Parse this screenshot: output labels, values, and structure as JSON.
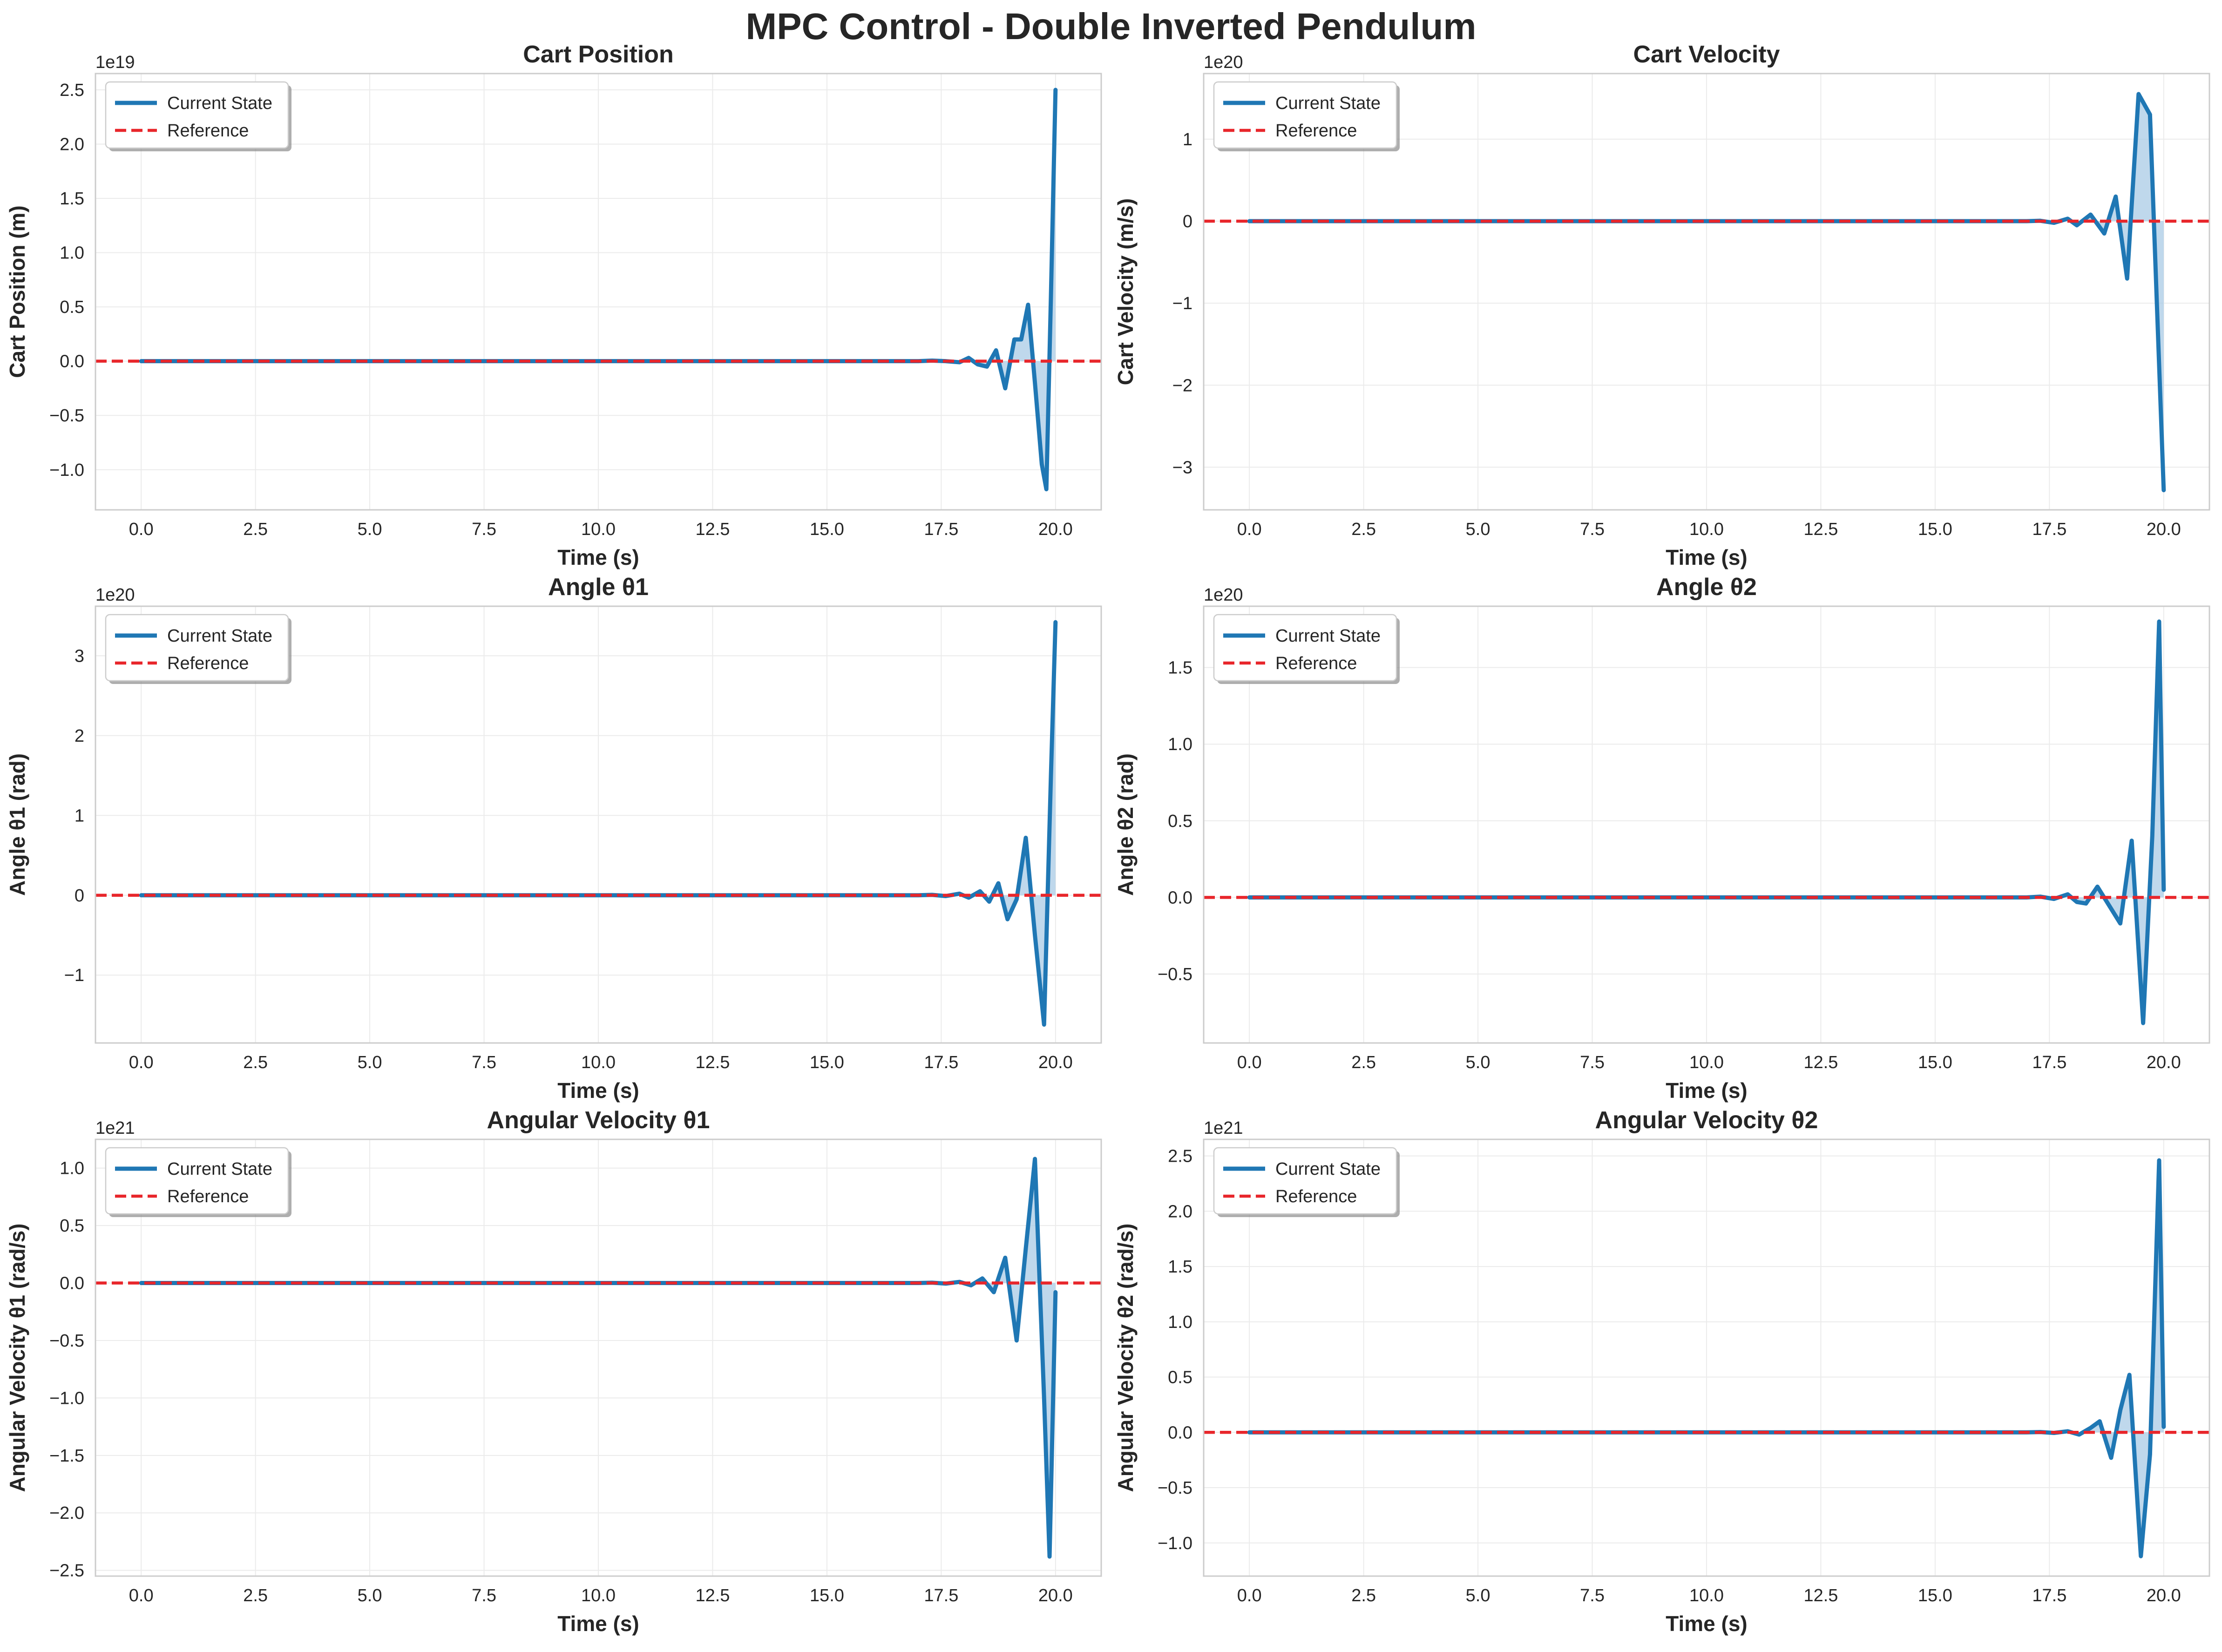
{
  "suptitle": "MPC Control - Double Inverted Pendulum",
  "colors": {
    "state_line": "#1f77b4",
    "fill": "#aacbe6",
    "reference_line": "#e8262b",
    "grid": "#ebebeb",
    "frame": "#cccccc",
    "text": "#262626"
  },
  "chart_data": [
    {
      "type": "line",
      "title": "Cart Position",
      "xlabel": "Time (s)",
      "ylabel": "Cart Position (m)",
      "y_offset_label": "1e19",
      "xlim": [
        -1.0,
        21.0
      ],
      "ylim": [
        -1.37,
        2.65
      ],
      "xticks": [
        0,
        2.5,
        5,
        7.5,
        10,
        12.5,
        15,
        17.5,
        20
      ],
      "xtick_labels": [
        "0.0",
        "2.5",
        "5.0",
        "7.5",
        "10.0",
        "12.5",
        "15.0",
        "17.5",
        "20.0"
      ],
      "yticks": [
        -1.0,
        -0.5,
        0.0,
        0.5,
        1.0,
        1.5,
        2.0,
        2.5
      ],
      "ytick_labels": [
        "−1.0",
        "−0.5",
        "0.0",
        "0.5",
        "1.0",
        "1.5",
        "2.0",
        "2.5"
      ],
      "grid": true,
      "legend_position": "top-left",
      "legend": [
        "Current State",
        "Reference"
      ],
      "series": [
        {
          "name": "Current State",
          "style": "solid",
          "x": [
            0,
            17.0,
            17.3,
            17.6,
            17.9,
            18.1,
            18.3,
            18.5,
            18.7,
            18.9,
            19.1,
            19.25,
            19.4,
            19.55,
            19.7,
            19.8,
            19.9,
            20.0
          ],
          "y": [
            0,
            0,
            0.005,
            0,
            -0.01,
            0.03,
            -0.03,
            -0.05,
            0.1,
            -0.25,
            0.2,
            0.2,
            0.52,
            -0.2,
            -0.95,
            -1.18,
            0.6,
            2.5
          ]
        },
        {
          "name": "Reference",
          "style": "dashed",
          "x": [
            -1.0,
            21.0
          ],
          "y": [
            0,
            0
          ]
        }
      ]
    },
    {
      "type": "line",
      "title": "Cart Velocity",
      "xlabel": "Time (s)",
      "ylabel": "Cart Velocity (m/s)",
      "y_offset_label": "1e20",
      "xlim": [
        -1.0,
        21.0
      ],
      "ylim": [
        -3.52,
        1.8
      ],
      "xticks": [
        0,
        2.5,
        5,
        7.5,
        10,
        12.5,
        15,
        17.5,
        20
      ],
      "xtick_labels": [
        "0.0",
        "2.5",
        "5.0",
        "7.5",
        "10.0",
        "12.5",
        "15.0",
        "17.5",
        "20.0"
      ],
      "yticks": [
        -3,
        -2,
        -1,
        0,
        1
      ],
      "ytick_labels": [
        "−3",
        "−2",
        "−1",
        "0",
        "1"
      ],
      "grid": true,
      "legend_position": "top-left",
      "legend": [
        "Current State",
        "Reference"
      ],
      "series": [
        {
          "name": "Current State",
          "style": "solid",
          "x": [
            0,
            17.0,
            17.3,
            17.6,
            17.9,
            18.1,
            18.4,
            18.7,
            18.95,
            19.2,
            19.45,
            19.7,
            19.85,
            20.0
          ],
          "y": [
            0,
            0,
            0.005,
            -0.02,
            0.03,
            -0.05,
            0.08,
            -0.15,
            0.3,
            -0.7,
            1.55,
            1.3,
            -1.0,
            -3.28
          ]
        },
        {
          "name": "Reference",
          "style": "dashed",
          "x": [
            -1.0,
            21.0
          ],
          "y": [
            0,
            0
          ]
        }
      ]
    },
    {
      "type": "line",
      "title": "Angle θ1",
      "xlabel": "Time (s)",
      "ylabel": "Angle θ1 (rad)",
      "y_offset_label": "1e20",
      "xlim": [
        -1.0,
        21.0
      ],
      "ylim": [
        -1.85,
        3.62
      ],
      "xticks": [
        0,
        2.5,
        5,
        7.5,
        10,
        12.5,
        15,
        17.5,
        20
      ],
      "xtick_labels": [
        "0.0",
        "2.5",
        "5.0",
        "7.5",
        "10.0",
        "12.5",
        "15.0",
        "17.5",
        "20.0"
      ],
      "yticks": [
        -1,
        0,
        1,
        2,
        3
      ],
      "ytick_labels": [
        "−1",
        "0",
        "1",
        "2",
        "3"
      ],
      "grid": true,
      "legend_position": "top-left",
      "legend": [
        "Current State",
        "Reference"
      ],
      "series": [
        {
          "name": "Current State",
          "style": "solid",
          "x": [
            0,
            17.0,
            17.3,
            17.6,
            17.9,
            18.1,
            18.35,
            18.55,
            18.75,
            18.95,
            19.15,
            19.35,
            19.55,
            19.75,
            19.9,
            20.0
          ],
          "y": [
            0,
            0,
            0.005,
            -0.01,
            0.02,
            -0.03,
            0.05,
            -0.08,
            0.15,
            -0.3,
            -0.05,
            0.72,
            -0.5,
            -1.62,
            1.5,
            3.42
          ]
        },
        {
          "name": "Reference",
          "style": "dashed",
          "x": [
            -1.0,
            21.0
          ],
          "y": [
            0,
            0
          ]
        }
      ]
    },
    {
      "type": "line",
      "title": "Angle θ2",
      "xlabel": "Time (s)",
      "ylabel": "Angle θ2 (rad)",
      "y_offset_label": "1e20",
      "xlim": [
        -1.0,
        21.0
      ],
      "ylim": [
        -0.95,
        1.9
      ],
      "xticks": [
        0,
        2.5,
        5,
        7.5,
        10,
        12.5,
        15,
        17.5,
        20
      ],
      "xtick_labels": [
        "0.0",
        "2.5",
        "5.0",
        "7.5",
        "10.0",
        "12.5",
        "15.0",
        "17.5",
        "20.0"
      ],
      "yticks": [
        -0.5,
        0.0,
        0.5,
        1.0,
        1.5
      ],
      "ytick_labels": [
        "−0.5",
        "0.0",
        "0.5",
        "1.0",
        "1.5"
      ],
      "grid": true,
      "legend_position": "top-left",
      "legend": [
        "Current State",
        "Reference"
      ],
      "series": [
        {
          "name": "Current State",
          "style": "solid",
          "x": [
            0,
            17.0,
            17.3,
            17.6,
            17.9,
            18.1,
            18.3,
            18.55,
            18.8,
            19.05,
            19.3,
            19.55,
            19.75,
            19.9,
            20.0
          ],
          "y": [
            0,
            0,
            0.005,
            -0.01,
            0.02,
            -0.03,
            -0.04,
            0.07,
            -0.05,
            -0.17,
            0.37,
            -0.82,
            0.4,
            1.8,
            0.05
          ]
        },
        {
          "name": "Reference",
          "style": "dashed",
          "x": [
            -1.0,
            21.0
          ],
          "y": [
            0,
            0
          ]
        }
      ]
    },
    {
      "type": "line",
      "title": "Angular Velocity θ1",
      "xlabel": "Time (s)",
      "ylabel": "Angular Velocity θ1 (rad/s)",
      "y_offset_label": "1e21",
      "xlim": [
        -1.0,
        21.0
      ],
      "ylim": [
        -2.55,
        1.25
      ],
      "xticks": [
        0,
        2.5,
        5,
        7.5,
        10,
        12.5,
        15,
        17.5,
        20
      ],
      "xtick_labels": [
        "0.0",
        "2.5",
        "5.0",
        "7.5",
        "10.0",
        "12.5",
        "15.0",
        "17.5",
        "20.0"
      ],
      "yticks": [
        -2.5,
        -2.0,
        -1.5,
        -1.0,
        -0.5,
        0.0,
        0.5,
        1.0
      ],
      "ytick_labels": [
        "−2.5",
        "−2.0",
        "−1.5",
        "−1.0",
        "−0.5",
        "0.0",
        "0.5",
        "1.0"
      ],
      "grid": true,
      "legend_position": "top-left",
      "legend": [
        "Current State",
        "Reference"
      ],
      "series": [
        {
          "name": "Current State",
          "style": "solid",
          "x": [
            0,
            17.0,
            17.3,
            17.6,
            17.9,
            18.15,
            18.4,
            18.65,
            18.9,
            19.15,
            19.35,
            19.55,
            19.75,
            19.87,
            20.0
          ],
          "y": [
            0,
            0,
            0.003,
            -0.005,
            0.01,
            -0.02,
            0.04,
            -0.08,
            0.22,
            -0.5,
            0.3,
            1.08,
            -1.0,
            -2.38,
            -0.08
          ]
        },
        {
          "name": "Reference",
          "style": "dashed",
          "x": [
            -1.0,
            21.0
          ],
          "y": [
            0,
            0
          ]
        }
      ]
    },
    {
      "type": "line",
      "title": "Angular Velocity θ2",
      "xlabel": "Time (s)",
      "ylabel": "Angular Velocity θ2 (rad/s)",
      "y_offset_label": "1e21",
      "xlim": [
        -1.0,
        21.0
      ],
      "ylim": [
        -1.3,
        2.65
      ],
      "xticks": [
        0,
        2.5,
        5,
        7.5,
        10,
        12.5,
        15,
        17.5,
        20
      ],
      "xtick_labels": [
        "0.0",
        "2.5",
        "5.0",
        "7.5",
        "10.0",
        "12.5",
        "15.0",
        "17.5",
        "20.0"
      ],
      "yticks": [
        -1.0,
        -0.5,
        0.0,
        0.5,
        1.0,
        1.5,
        2.0,
        2.5
      ],
      "ytick_labels": [
        "−1.0",
        "−0.5",
        "0.0",
        "0.5",
        "1.0",
        "1.5",
        "2.0",
        "2.5"
      ],
      "grid": true,
      "legend_position": "top-left",
      "legend": [
        "Current State",
        "Reference"
      ],
      "series": [
        {
          "name": "Current State",
          "style": "solid",
          "x": [
            0,
            17.0,
            17.3,
            17.6,
            17.9,
            18.15,
            18.4,
            18.6,
            18.85,
            19.05,
            19.25,
            19.5,
            19.7,
            19.9,
            20.0
          ],
          "y": [
            0,
            0,
            0.003,
            -0.005,
            0.01,
            -0.02,
            0.04,
            0.1,
            -0.23,
            0.2,
            0.52,
            -1.12,
            -0.2,
            2.46,
            0.05
          ]
        },
        {
          "name": "Reference",
          "style": "dashed",
          "x": [
            -1.0,
            21.0
          ],
          "y": [
            0,
            0
          ]
        }
      ]
    }
  ]
}
